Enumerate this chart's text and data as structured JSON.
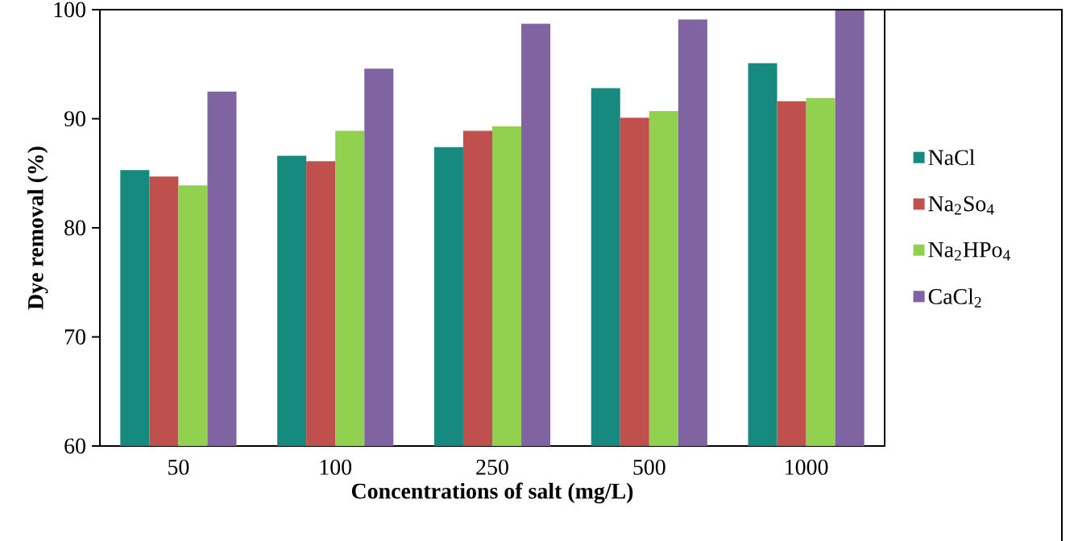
{
  "chart_data": {
    "type": "bar",
    "xlabel": "Concentrations of salt (mg/L)",
    "ylabel": "Dye removal (%)",
    "categories": [
      "50",
      "100",
      "250",
      "500",
      "1000"
    ],
    "series": [
      {
        "name": "NaCl",
        "color": "#178a80",
        "values": [
          85.3,
          86.6,
          87.4,
          92.8,
          95.1
        ]
      },
      {
        "name": "Na$_{2}$So$_{4}$",
        "color": "#c0504d",
        "values": [
          84.7,
          86.1,
          88.9,
          90.1,
          91.6
        ]
      },
      {
        "name": "Na$_{2}$HPo$_{4}$",
        "color": "#92d050",
        "values": [
          83.9,
          88.9,
          89.3,
          90.7,
          91.9
        ]
      },
      {
        "name": "CaCl$_{2}$",
        "color": "#8064a2",
        "values": [
          92.5,
          94.6,
          98.7,
          99.1,
          100
        ]
      }
    ],
    "ylim": [
      60,
      100
    ],
    "yticks": [
      60,
      70,
      80,
      90,
      100
    ],
    "legend": "right",
    "grid": false
  }
}
